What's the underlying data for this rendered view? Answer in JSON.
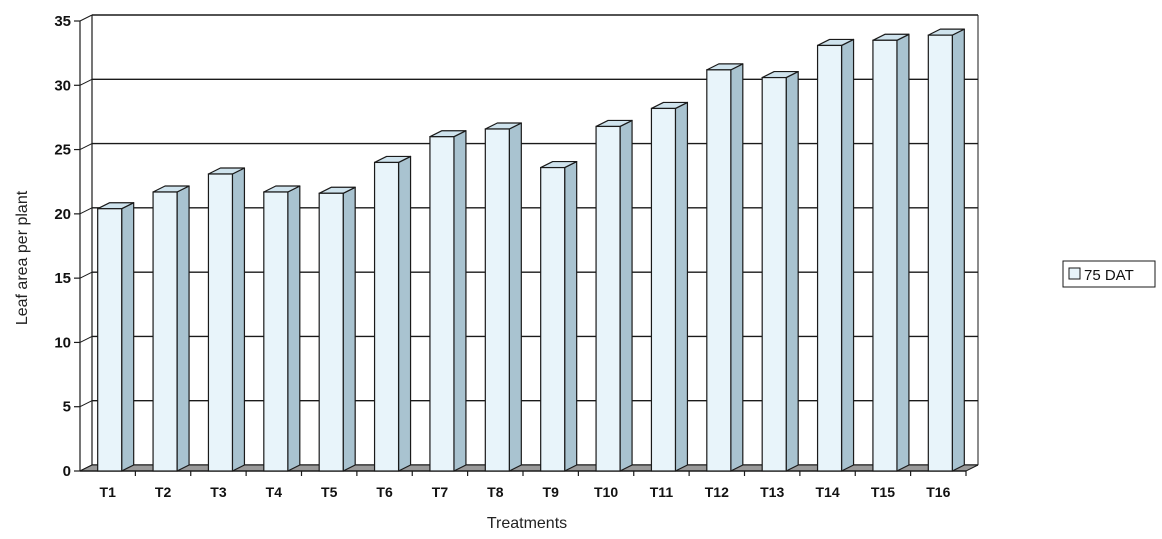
{
  "chart_data": {
    "type": "bar",
    "style": "3d-column",
    "categories": [
      "T1",
      "T2",
      "T3",
      "T4",
      "T5",
      "T6",
      "T7",
      "T8",
      "T9",
      "T10",
      "T11",
      "T12",
      "T13",
      "T14",
      "T15",
      "T16"
    ],
    "series": [
      {
        "name": "75 DAT",
        "values": [
          20.4,
          21.7,
          23.1,
          21.7,
          21.6,
          24.0,
          26.0,
          26.6,
          23.6,
          26.8,
          28.2,
          31.2,
          30.6,
          33.1,
          33.5,
          33.9
        ]
      }
    ],
    "xlabel": "Treatments",
    "ylabel": "Leaf area per plant",
    "ylim": [
      0,
      35
    ],
    "yticks": [
      "0",
      "5",
      "10",
      "15",
      "20",
      "25",
      "30",
      "35"
    ],
    "grid": true,
    "legend_position": "right",
    "colors": {
      "bar_front": "#e8f4fa",
      "bar_side": "#a9c3d0",
      "bar_top": "#cfe3ed",
      "bar_edge": "#1a1a1a",
      "gridline": "#1a1a1a",
      "floor": "#9a9a9a"
    }
  }
}
